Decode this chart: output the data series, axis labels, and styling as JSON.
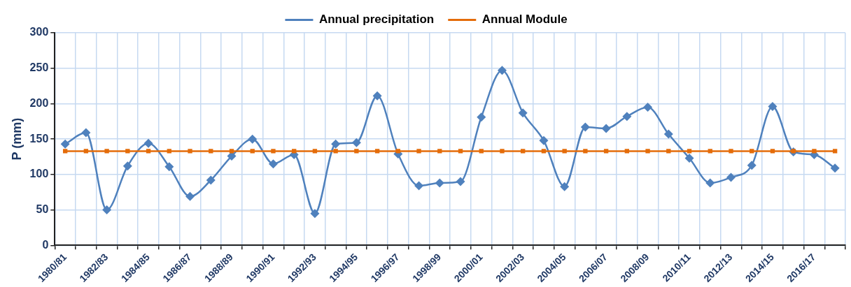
{
  "chart_data": {
    "type": "line",
    "ylabel": "P (mm)",
    "categories": [
      "1980/81",
      null,
      "1982/83",
      null,
      "1984/85",
      null,
      "1986/87",
      null,
      "1988/89",
      null,
      "1990/91",
      null,
      "1992/93",
      null,
      "1994/95",
      null,
      "1996/97",
      null,
      "1998/99",
      null,
      "2000/01",
      null,
      "2002/03",
      null,
      "2004/05",
      null,
      "2006/07",
      null,
      "2008/09",
      null,
      "2010/11",
      null,
      "2012/13",
      null,
      "2014/15",
      null,
      "2016/17",
      null
    ],
    "series": [
      {
        "name": "Annual precipitation",
        "color": "#4f81bd",
        "marker": "diamond",
        "values": [
          143,
          159,
          50,
          112,
          144,
          111,
          69,
          92,
          126,
          150,
          115,
          128,
          45,
          143,
          145,
          211,
          129,
          84,
          88,
          90,
          181,
          247,
          187,
          148,
          83,
          167,
          165,
          182,
          195,
          157,
          123,
          88,
          96,
          113,
          196,
          132,
          128,
          109
        ]
      },
      {
        "name": "Annual Module",
        "color": "#e46c0a",
        "marker": "square",
        "values": [
          133,
          133,
          133,
          133,
          133,
          133,
          133,
          133,
          133,
          133,
          133,
          133,
          133,
          133,
          133,
          133,
          133,
          133,
          133,
          133,
          133,
          133,
          133,
          133,
          133,
          133,
          133,
          133,
          133,
          133,
          133,
          133,
          133,
          133,
          133,
          133,
          133,
          133
        ]
      }
    ],
    "ylim": [
      0,
      300
    ],
    "yticks": [
      0,
      50,
      100,
      150,
      200,
      250,
      300
    ],
    "grid": true,
    "legend": "top",
    "line_style": "solid"
  }
}
